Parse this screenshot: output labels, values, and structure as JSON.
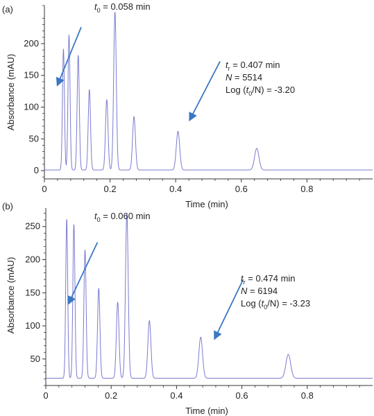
{
  "chart_data": [
    {
      "type": "line",
      "panel_label": "(a)",
      "xlabel": "Time (min)",
      "ylabel": "Absorbance (mAU)",
      "xlim": [
        0,
        1.0
      ],
      "ylim": [
        -13,
        260
      ],
      "xticks": [
        0,
        0.2,
        0.4,
        0.6,
        0.8
      ],
      "xtick_labels": [
        "0",
        "0.2",
        "0.4",
        "0.6",
        "0.8"
      ],
      "yticks": [
        0,
        50,
        100,
        150,
        200
      ],
      "ytick_labels": [
        "0",
        "50",
        "100",
        "150",
        "200"
      ],
      "grid": false,
      "baseline": 1,
      "peak_width": 0.0048,
      "line_color": "#7a7ad0",
      "arrow_color": "#3b78c4",
      "peaks": [
        {
          "t": 0.058,
          "h": 192
        },
        {
          "t": 0.075,
          "h": 214
        },
        {
          "t": 0.103,
          "h": 182
        },
        {
          "t": 0.137,
          "h": 128
        },
        {
          "t": 0.19,
          "h": 112
        },
        {
          "t": 0.215,
          "h": 250
        },
        {
          "t": 0.273,
          "h": 85
        },
        {
          "t": 0.407,
          "h": 62
        },
        {
          "t": 0.647,
          "h": 35
        }
      ],
      "annotation_t0": {
        "label": "t",
        "sub": "0",
        "text": " = 0.058 min"
      },
      "annotation_tr": {
        "line1": {
          "label": "t",
          "sub": "r",
          "text": " = 0.407 min"
        },
        "line2": {
          "label": "N",
          "text": " = 5514"
        },
        "line3": {
          "pre": "Log (",
          "label": "t",
          "sub": "0",
          "post": "/N) = -3.20"
        }
      },
      "arrows": [
        {
          "from": [
            0.112,
            226
          ],
          "to": [
            0.04,
            135
          ]
        },
        {
          "from": [
            0.535,
            172
          ],
          "to": [
            0.443,
            80
          ]
        }
      ]
    },
    {
      "type": "line",
      "panel_label": "(b)",
      "xlabel": "Time (min)",
      "ylabel": "Absorbance (mAU)",
      "xlim": [
        0,
        1.0
      ],
      "ylim": [
        10,
        278
      ],
      "xticks": [
        0,
        0.2,
        0.4,
        0.6,
        0.8
      ],
      "xtick_labels": [
        "0",
        "0.2",
        "0.4",
        "0.6",
        "0.8"
      ],
      "yticks": [
        50,
        100,
        150,
        200,
        250
      ],
      "ytick_labels": [
        "50",
        "100",
        "150",
        "200",
        "250"
      ],
      "grid": false,
      "baseline": 21,
      "peak_width": 0.0048,
      "line_color": "#7a7ad0",
      "arrow_color": "#3b78c4",
      "peaks": [
        {
          "t": 0.064,
          "h": 262
        },
        {
          "t": 0.086,
          "h": 254
        },
        {
          "t": 0.12,
          "h": 215
        },
        {
          "t": 0.162,
          "h": 157
        },
        {
          "t": 0.22,
          "h": 136
        },
        {
          "t": 0.248,
          "h": 270
        },
        {
          "t": 0.317,
          "h": 108
        },
        {
          "t": 0.474,
          "h": 83
        },
        {
          "t": 0.742,
          "h": 57
        }
      ],
      "annotation_t0": {
        "label": "t",
        "sub": "0",
        "text": " = 0.060 min"
      },
      "annotation_tr": {
        "line1": {
          "label": "t",
          "sub": "r",
          "text": " = 0.474 min"
        },
        "line2": {
          "label": "N",
          "text": " = 6194"
        },
        "line3": {
          "pre": "Log (",
          "label": "t",
          "sub": "0",
          "post": "/N) = -3.23"
        }
      },
      "arrows": [
        {
          "from": [
            0.158,
            226
          ],
          "to": [
            0.07,
            134
          ]
        },
        {
          "from": [
            0.604,
            170
          ],
          "to": [
            0.517,
            81
          ]
        }
      ]
    }
  ]
}
